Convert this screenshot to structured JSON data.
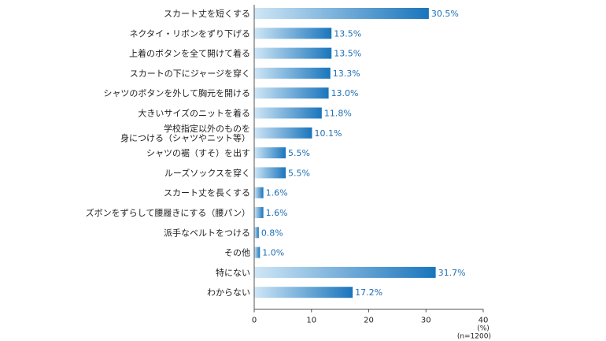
{
  "chart_data": {
    "type": "bar",
    "orientation": "horizontal",
    "categories": [
      [
        "スカート丈を短くする"
      ],
      [
        "ネクタイ・リボンをずり下げる"
      ],
      [
        "上着のボタンを全て開けて着る"
      ],
      [
        "スカートの下にジャージを穿く"
      ],
      [
        "シャツのボタンを外して胸元を開ける"
      ],
      [
        "大きいサイズのニットを着る"
      ],
      [
        "学校指定以外のものを",
        "身につける（シャツやニット等）"
      ],
      [
        "シャツの裾（すそ）を出す"
      ],
      [
        "ルーズソックスを穿く"
      ],
      [
        "スカート丈を長くする"
      ],
      [
        "ズボンをずらして腰履きにする（腰パン）"
      ],
      [
        "派手なベルトをつける"
      ],
      [
        "その他"
      ],
      [
        "特にない"
      ],
      [
        "わからない"
      ]
    ],
    "values": [
      30.5,
      13.5,
      13.5,
      13.3,
      13.0,
      11.8,
      10.1,
      5.5,
      5.5,
      1.6,
      1.6,
      0.8,
      1.0,
      31.7,
      17.2
    ],
    "value_labels": [
      "30.5%",
      "13.5%",
      "13.5%",
      "13.3%",
      "13.0%",
      "11.8%",
      "10.1%",
      "5.5%",
      "5.5%",
      "1.6%",
      "1.6%",
      "0.8%",
      "1.0%",
      "31.7%",
      "17.2%"
    ],
    "xlim": [
      0,
      40
    ],
    "xticks": [
      0,
      10,
      20,
      30,
      40
    ],
    "unit_label": "(%)",
    "sample_note": "(n=1200)",
    "grid": false,
    "colors": {
      "bar_light": "#cfe6f6",
      "bar_dark": "#1a75bc",
      "value_text": "#1f6fb5",
      "axis": "#555555"
    }
  }
}
